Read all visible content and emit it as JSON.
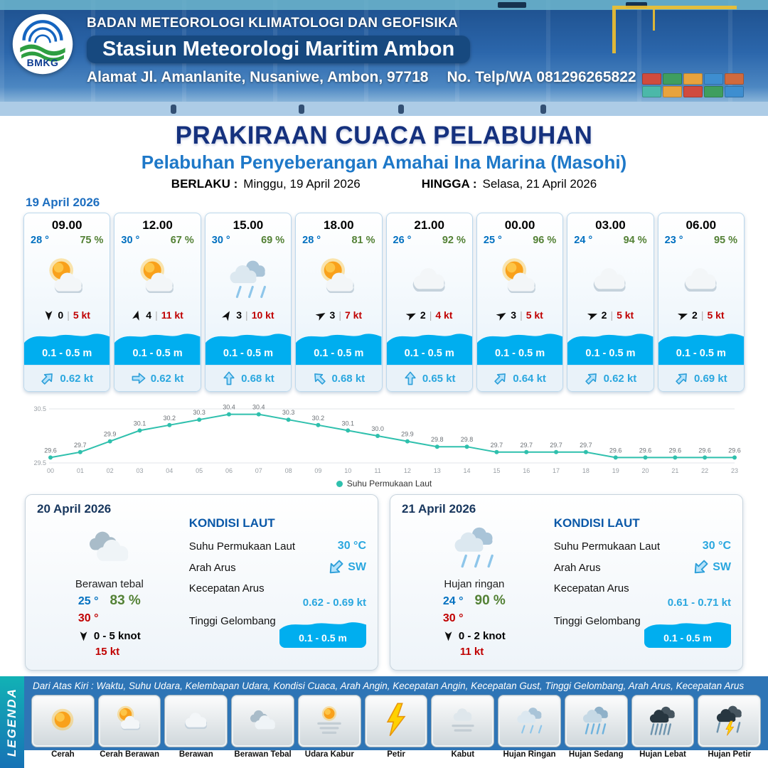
{
  "header": {
    "agency": "BADAN METEOROLOGI KLIMATOLOGI DAN GEOFISIKA",
    "station": "Stasiun Meteorologi Maritim Ambon",
    "address": "Alamat Jl. Amanlanite, Nusaniwe, Ambon, 97718",
    "phone": "No. Telp/WA  081296265822",
    "logo_text": "BMKG"
  },
  "title": {
    "main": "PRAKIRAAN CUACA PELABUHAN",
    "subtitle": "Pelabuhan Penyeberangan Amahai Ina Marina (Masohi)",
    "valid_from_label": "BERLAKU :",
    "valid_from": "Minggu, 19 April 2026",
    "valid_to_label": "HINGGA :",
    "valid_to": "Selasa, 21 April 2026"
  },
  "forecast_date": "19 April 2026",
  "hourly": [
    {
      "time": "09.00",
      "temp": "28 °",
      "humidity": "75 %",
      "icon": "cerah-berawan",
      "wind_rot": 180,
      "wind_num": "0",
      "wind_speed": "5 kt",
      "wave_height": "0.1 - 0.5 m",
      "current_speed": "0.62 kt",
      "current_rot": 45
    },
    {
      "time": "12.00",
      "temp": "30 °",
      "humidity": "67 %",
      "icon": "cerah-berawan",
      "wind_rot": 15,
      "wind_num": "4",
      "wind_speed": "11 kt",
      "wave_height": "0.1 - 0.5 m",
      "current_speed": "0.62 kt",
      "current_rot": 90
    },
    {
      "time": "15.00",
      "temp": "30 °",
      "humidity": "69 %",
      "icon": "hujan-ringan",
      "wind_rot": 30,
      "wind_num": "3",
      "wind_speed": "10 kt",
      "wave_height": "0.1 - 0.5 m",
      "current_speed": "0.68 kt",
      "current_rot": 0
    },
    {
      "time": "18.00",
      "temp": "28 °",
      "humidity": "81 %",
      "icon": "cerah-berawan",
      "wind_rot": 60,
      "wind_num": "3",
      "wind_speed": "7 kt",
      "wave_height": "0.1 - 0.5 m",
      "current_speed": "0.68 kt",
      "current_rot": -45
    },
    {
      "time": "21.00",
      "temp": "26 °",
      "humidity": "92 %",
      "icon": "berawan",
      "wind_rot": 65,
      "wind_num": "2",
      "wind_speed": "4 kt",
      "wave_height": "0.1 - 0.5 m",
      "current_speed": "0.65 kt",
      "current_rot": 0
    },
    {
      "time": "00.00",
      "temp": "25 °",
      "humidity": "96 %",
      "icon": "cerah-berawan",
      "wind_rot": 60,
      "wind_num": "3",
      "wind_speed": "5 kt",
      "wave_height": "0.1 - 0.5 m",
      "current_speed": "0.64 kt",
      "current_rot": 45
    },
    {
      "time": "03.00",
      "temp": "24 °",
      "humidity": "94 %",
      "icon": "berawan",
      "wind_rot": 70,
      "wind_num": "2",
      "wind_speed": "5 kt",
      "wave_height": "0.1 - 0.5 m",
      "current_speed": "0.62 kt",
      "current_rot": 45
    },
    {
      "time": "06.00",
      "temp": "23 °",
      "humidity": "95 %",
      "icon": "berawan",
      "wind_rot": 70,
      "wind_num": "2",
      "wind_speed": "5 kt",
      "wave_height": "0.1 - 0.5 m",
      "current_speed": "0.69 kt",
      "current_rot": 45
    }
  ],
  "chart_data": {
    "type": "line",
    "title": "Suhu Permukaan Laut",
    "series_label": "Suhu Permukaan Laut",
    "x": [
      "00",
      "01",
      "02",
      "03",
      "04",
      "05",
      "06",
      "07",
      "08",
      "09",
      "10",
      "11",
      "12",
      "13",
      "14",
      "15",
      "16",
      "17",
      "18",
      "19",
      "20",
      "21",
      "22",
      "23"
    ],
    "values": [
      29.6,
      29.7,
      29.9,
      30.1,
      30.2,
      30.3,
      30.4,
      30.4,
      30.3,
      30.2,
      30.1,
      30.0,
      29.9,
      29.8,
      29.8,
      29.7,
      29.7,
      29.7,
      29.7,
      29.6,
      29.6,
      29.6,
      29.6,
      29.6
    ],
    "xlabel": "",
    "ylabel": "",
    "ylim": [
      29.5,
      30.5
    ],
    "grid": false,
    "legend_position": "bottom",
    "line_color": "#2fc0ad"
  },
  "daily": [
    {
      "date": "20 April 2026",
      "icon": "berawan-tebal",
      "condition": "Berawan tebal",
      "temp_min": "25 °",
      "humidity": "83 %",
      "temp_max": "30 °",
      "wind_range": "0  - 5 knot",
      "gust": "15 kt",
      "sea": {
        "title": "KONDISI LAUT",
        "sst_label": "Suhu Permukaan Laut",
        "sst": "30 °C",
        "dir_label": "Arah Arus",
        "dir": "SW",
        "speed_label": "Kecepatan Arus",
        "speed": "0.62 - 0.69 kt",
        "wave_label": "Tinggi Gelombang",
        "wave": "0.1 - 0.5 m"
      }
    },
    {
      "date": "21 April 2026",
      "icon": "hujan-ringan",
      "condition": "Hujan ringan",
      "temp_min": "24 °",
      "humidity": "90 %",
      "temp_max": "30 °",
      "wind_range": "0  - 2 knot",
      "gust": "11 kt",
      "sea": {
        "title": "KONDISI LAUT",
        "sst_label": "Suhu Permukaan Laut",
        "sst": "30 °C",
        "dir_label": "Arah Arus",
        "dir": "SW",
        "speed_label": "Kecepatan Arus",
        "speed": "0.61 - 0.71 kt",
        "wave_label": "Tinggi Gelombang",
        "wave": "0.1 - 0.5 m"
      }
    }
  ],
  "legend": {
    "title": "LEGENDA",
    "description": "Dari Atas Kiri : Waktu, Suhu Udara, Kelembapan Udara, Kondisi Cuaca, Arah Angin, Kecepatan Angin, Kecepatan Gust, Tinggi Gelombang, Arah Arus, Kecepatan Arus",
    "items": [
      {
        "label": "Cerah",
        "icon": "cerah"
      },
      {
        "label": "Cerah Berawan",
        "icon": "cerah-berawan"
      },
      {
        "label": "Berawan",
        "icon": "berawan"
      },
      {
        "label": "Berawan Tebal",
        "icon": "berawan-tebal"
      },
      {
        "label": "Udara Kabur",
        "icon": "udara-kabur"
      },
      {
        "label": "Petir",
        "icon": "petir"
      },
      {
        "label": "Kabut",
        "icon": "kabut"
      },
      {
        "label": "Hujan Ringan",
        "icon": "hujan-ringan"
      },
      {
        "label": "Hujan Sedang",
        "icon": "hujan-sedang"
      },
      {
        "label": "Hujan Lebat",
        "icon": "hujan-lebat"
      },
      {
        "label": "Hujan Petir",
        "icon": "hujan-petir"
      }
    ]
  }
}
